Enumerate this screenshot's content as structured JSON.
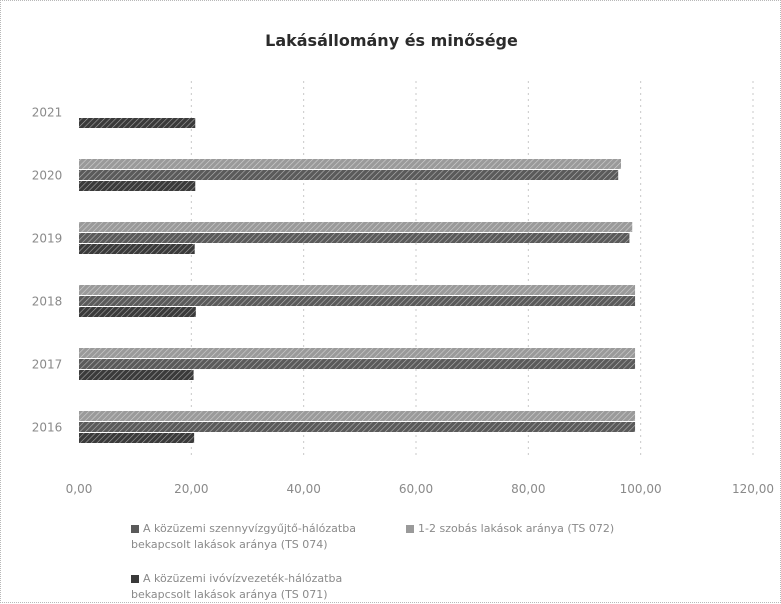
{
  "chart_data": {
    "type": "bar",
    "orientation": "horizontal",
    "title": "Lakásállomány és minősége",
    "categories": [
      "2016",
      "2017",
      "2018",
      "2019",
      "2020",
      "2021"
    ],
    "series": [
      {
        "name": "A közüzemi ivóvízvezeték-hálózatba bekapcsolt lakások aránya (TS 071)",
        "values": [
          20.5,
          20.4,
          20.8,
          20.6,
          20.7,
          20.7
        ],
        "color": "#3a3a3a"
      },
      {
        "name": "A közüzemi szennyvízgyűjtő-hálózatba bekapcsolt lakások aránya (TS 074)",
        "values": [
          99.0,
          99.0,
          99.0,
          98.0,
          96.0,
          null
        ],
        "color": "#5a5a5a"
      },
      {
        "name": "1-2 szobás lakások aránya (TS 072)",
        "values": [
          99.0,
          99.0,
          99.0,
          98.5,
          96.5,
          null
        ],
        "color": "#9a9a9a"
      }
    ],
    "xlim": [
      0,
      120
    ],
    "xticks": [
      "0,00",
      "20,00",
      "40,00",
      "60,00",
      "80,00",
      "100,00",
      "120,00"
    ],
    "grid": true,
    "legend_position": "bottom"
  }
}
